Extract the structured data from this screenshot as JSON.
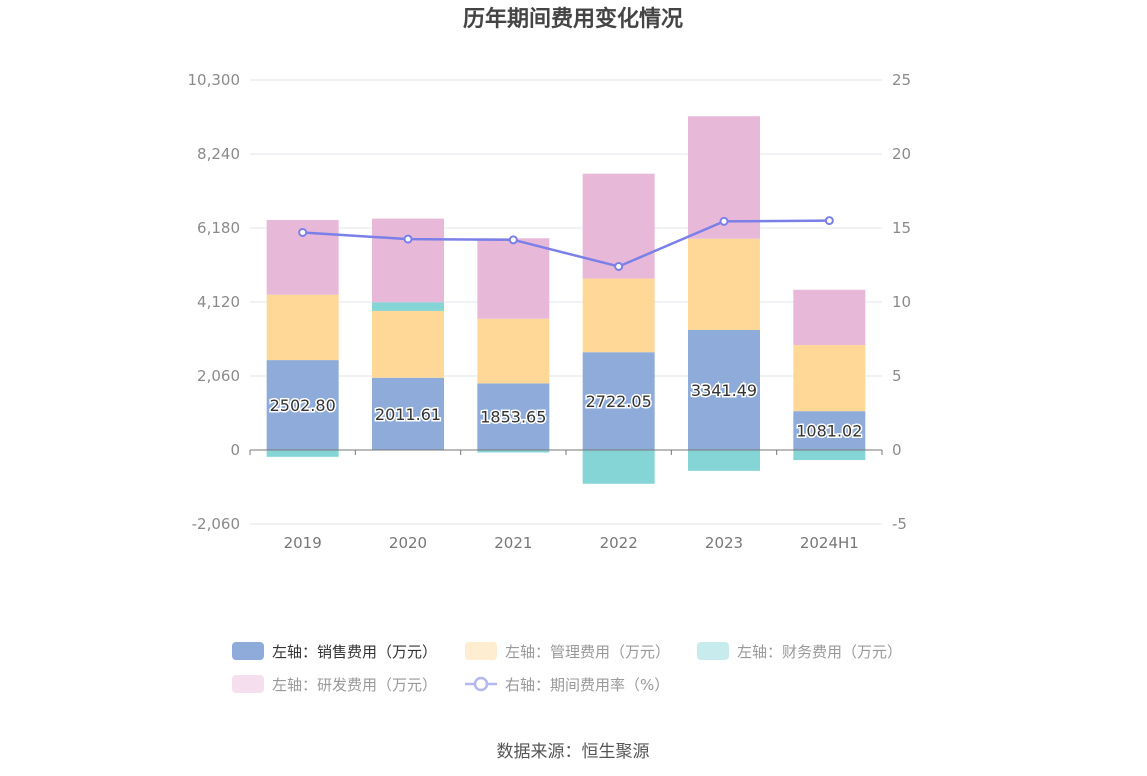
{
  "chart_data": {
    "type": "bar",
    "title": "历年期间费用变化情况",
    "categories": [
      "2019",
      "2020",
      "2021",
      "2022",
      "2023",
      "2024H1"
    ],
    "series": [
      {
        "name": "左轴：销售费用（万元）",
        "axis": "left",
        "color": "#8eabd9",
        "values": [
          2502.8,
          2011.61,
          1853.65,
          2722.05,
          3341.49,
          1081.02
        ],
        "show_labels": true
      },
      {
        "name": "左轴：管理费用（万元）",
        "axis": "left",
        "color": "#ffd898",
        "values": [
          1820,
          1860,
          1800,
          2050,
          2540,
          1840
        ],
        "show_labels": false
      },
      {
        "name": "左轴：财务费用（万元）",
        "axis": "left",
        "color": "#86d5d6",
        "values": [
          -190,
          240,
          -70,
          -940,
          -580,
          -280
        ],
        "show_labels": false
      },
      {
        "name": "左轴：研发费用（万元）",
        "axis": "left",
        "color": "#e8b8d9",
        "values": [
          2080,
          2330,
          2240,
          2920,
          3410,
          1540
        ],
        "show_labels": false
      },
      {
        "name": "右轴：期间费用率（%）",
        "axis": "right",
        "type": "line",
        "color": "#7b80e8",
        "values": [
          14.7,
          14.25,
          14.2,
          12.4,
          15.45,
          15.5
        ]
      }
    ],
    "y_left": {
      "ticks": [
        "10,300",
        "8,240",
        "6,180",
        "4,120",
        "2,060",
        "0",
        "-2,060"
      ],
      "min": -2060,
      "max": 10300
    },
    "y_right": {
      "ticks": [
        "25",
        "20",
        "15",
        "10",
        "5",
        "0",
        "-5"
      ],
      "min": -5,
      "max": 25
    },
    "grid": true,
    "legend_position": "bottom",
    "source": "数据来源：恒生聚源"
  }
}
